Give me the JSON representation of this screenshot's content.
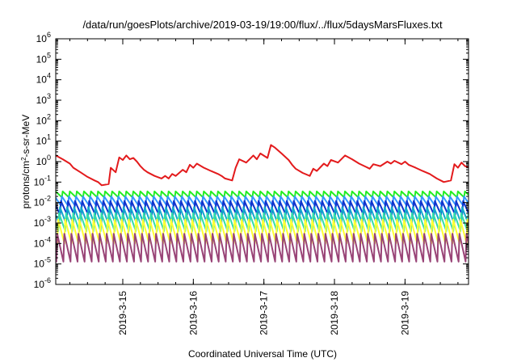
{
  "chart_data": {
    "type": "line",
    "title": "/data/run/goesPlots/archive/2019-03-19/19:00/flux/../flux/5daysMarsFluxes.txt",
    "xlabel": "Coordinated Universal Time (UTC)",
    "ylabel": {
      "prefix": "protons/cm",
      "sup": "2",
      "suffix": "-s-sr-MeV"
    },
    "yscale": "log",
    "ylim": [
      1e-06,
      1000000.0
    ],
    "xlim_days": [
      0,
      5.85
    ],
    "ytick_exponents": [
      -6,
      -5,
      -4,
      -3,
      -2,
      -1,
      0,
      1,
      2,
      3,
      4,
      5,
      6
    ],
    "xticks": [
      {
        "day": 0.95,
        "label": "2019-3-15"
      },
      {
        "day": 1.95,
        "label": "2019-3-16"
      },
      {
        "day": 2.95,
        "label": "2019-3-17"
      },
      {
        "day": 3.95,
        "label": "2019-3-18"
      },
      {
        "day": 4.95,
        "label": "2019-3-19"
      }
    ],
    "grid": false,
    "legend": "none",
    "series": [
      {
        "color": "#e31a1c",
        "x": [
          0,
          0.1,
          0.2,
          0.25,
          0.35,
          0.45,
          0.55,
          0.6,
          0.65,
          0.75,
          0.78,
          0.85,
          0.9,
          0.95,
          1.0,
          1.05,
          1.1,
          1.15,
          1.2,
          1.25,
          1.3,
          1.4,
          1.5,
          1.55,
          1.6,
          1.65,
          1.7,
          1.8,
          1.85,
          1.9,
          1.95,
          2.0,
          2.1,
          2.2,
          2.3,
          2.35,
          2.4,
          2.5,
          2.55,
          2.6,
          2.7,
          2.8,
          2.85,
          2.9,
          3.0,
          3.05,
          3.1,
          3.2,
          3.3,
          3.35,
          3.4,
          3.5,
          3.6,
          3.65,
          3.7,
          3.8,
          3.85,
          3.9,
          4.0,
          4.1,
          4.2,
          4.3,
          4.4,
          4.45,
          4.5,
          4.6,
          4.7,
          4.75,
          4.8,
          4.9,
          4.95,
          5.0,
          5.1,
          5.2,
          5.3,
          5.4,
          5.5,
          5.6,
          5.65,
          5.7,
          5.75,
          5.8,
          5.85
        ],
        "y": [
          2,
          1.3,
          0.8,
          0.5,
          0.3,
          0.18,
          0.12,
          0.1,
          0.07,
          0.08,
          0.5,
          0.3,
          1.6,
          1.2,
          2,
          1.3,
          1.5,
          1,
          0.6,
          0.4,
          0.3,
          0.2,
          0.15,
          0.2,
          0.15,
          0.25,
          0.2,
          0.4,
          0.3,
          0.7,
          0.5,
          0.8,
          0.5,
          0.35,
          0.25,
          0.2,
          0.15,
          0.12,
          0.5,
          1.3,
          0.9,
          2,
          1.3,
          2.5,
          1.5,
          6.5,
          5,
          2.5,
          1.2,
          0.7,
          0.45,
          0.28,
          0.2,
          0.45,
          0.35,
          0.8,
          0.6,
          1.2,
          0.9,
          2,
          1.3,
          0.8,
          0.55,
          0.45,
          0.75,
          0.6,
          1,
          0.8,
          1.1,
          0.75,
          1,
          0.7,
          0.5,
          0.35,
          0.25,
          0.15,
          0.1,
          0.12,
          0.75,
          0.5,
          0.9,
          0.6,
          0.55
        ]
      },
      {
        "color": "#22ee22",
        "pattern": "sawtooth",
        "high": 0.035,
        "low": 0.018
      },
      {
        "color": "#3399ff",
        "pattern": "sawtooth",
        "high": 0.02,
        "low": 0.007
      },
      {
        "color": "#1133cc",
        "pattern": "sawtooth",
        "high": 0.012,
        "low": 0.0025
      },
      {
        "color": "#11aacc",
        "pattern": "sawtooth",
        "high": 0.006,
        "low": 0.0009
      },
      {
        "color": "#33ddaa",
        "pattern": "sawtooth",
        "high": 0.003,
        "low": 0.0004
      },
      {
        "color": "#ffff33",
        "pattern": "sawtooth",
        "high": 0.0015,
        "low": 0.0001
      },
      {
        "color": "#994477",
        "pattern": "sawtooth",
        "high": 0.0003,
        "low": 1.3e-05
      }
    ],
    "sawtooth_period_days": 0.1
  }
}
